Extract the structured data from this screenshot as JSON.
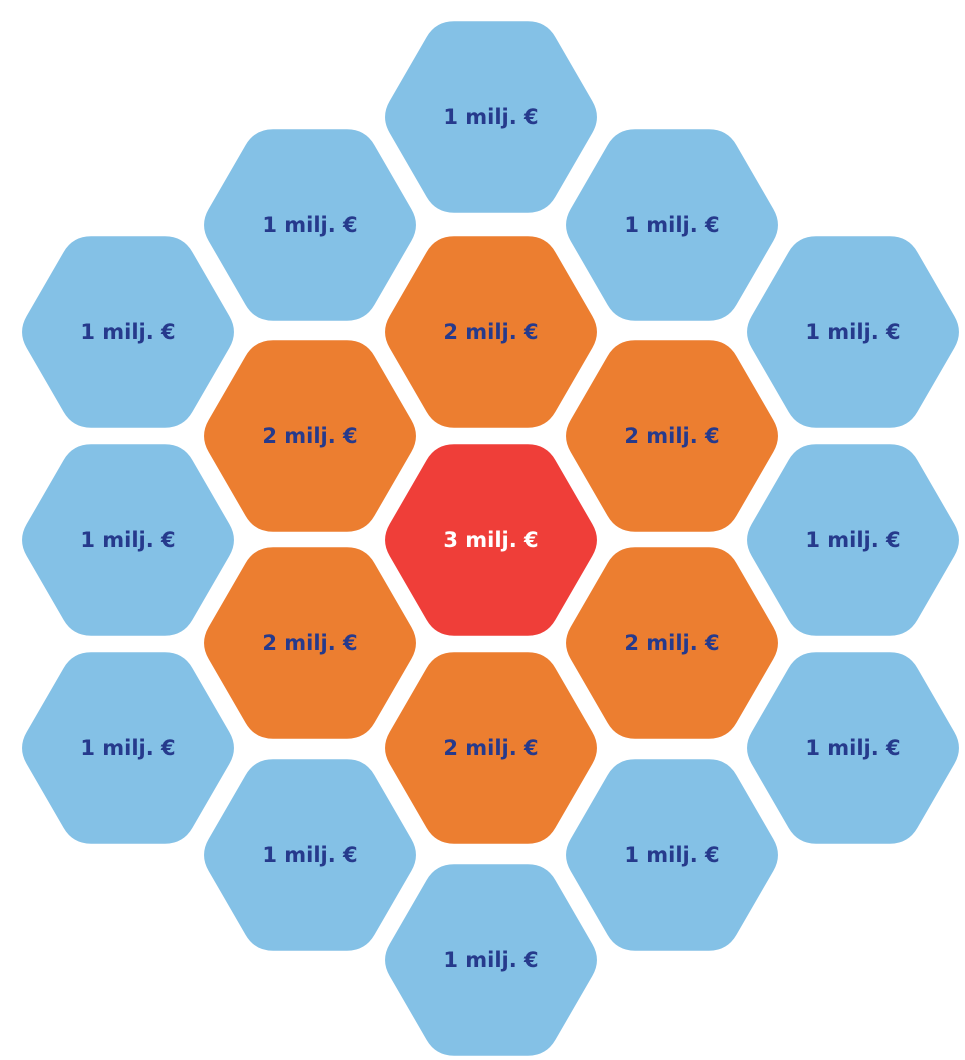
{
  "colors": {
    "background": "#ffffff",
    "outer_fill": "#84c1e6",
    "middle_fill": "#ec7e30",
    "center_fill": "#ef3e39",
    "dark_text": "#263a8c",
    "light_text": "#ffffff"
  },
  "rings": {
    "center": {
      "label": "3 milj. €",
      "value_million_eur": 3
    },
    "middle": {
      "label": "2 milj. €",
      "value_million_eur": 2
    },
    "outer": {
      "label": "1 milj. €",
      "value_million_eur": 1
    }
  },
  "cells": [
    {
      "ring": "center",
      "label": "3 milj. €"
    },
    {
      "ring": "middle",
      "label": "2 milj. €"
    },
    {
      "ring": "middle",
      "label": "2 milj. €"
    },
    {
      "ring": "middle",
      "label": "2 milj. €"
    },
    {
      "ring": "middle",
      "label": "2 milj. €"
    },
    {
      "ring": "middle",
      "label": "2 milj. €"
    },
    {
      "ring": "middle",
      "label": "2 milj. €"
    },
    {
      "ring": "outer",
      "label": "1 milj. €"
    },
    {
      "ring": "outer",
      "label": "1 milj. €"
    },
    {
      "ring": "outer",
      "label": "1 milj. €"
    },
    {
      "ring": "outer",
      "label": "1 milj. €"
    },
    {
      "ring": "outer",
      "label": "1 milj. €"
    },
    {
      "ring": "outer",
      "label": "1 milj. €"
    },
    {
      "ring": "outer",
      "label": "1 milj. €"
    },
    {
      "ring": "outer",
      "label": "1 milj. €"
    },
    {
      "ring": "outer",
      "label": "1 milj. €"
    },
    {
      "ring": "outer",
      "label": "1 milj. €"
    },
    {
      "ring": "outer",
      "label": "1 milj. €"
    },
    {
      "ring": "outer",
      "label": "1 milj. €"
    }
  ]
}
